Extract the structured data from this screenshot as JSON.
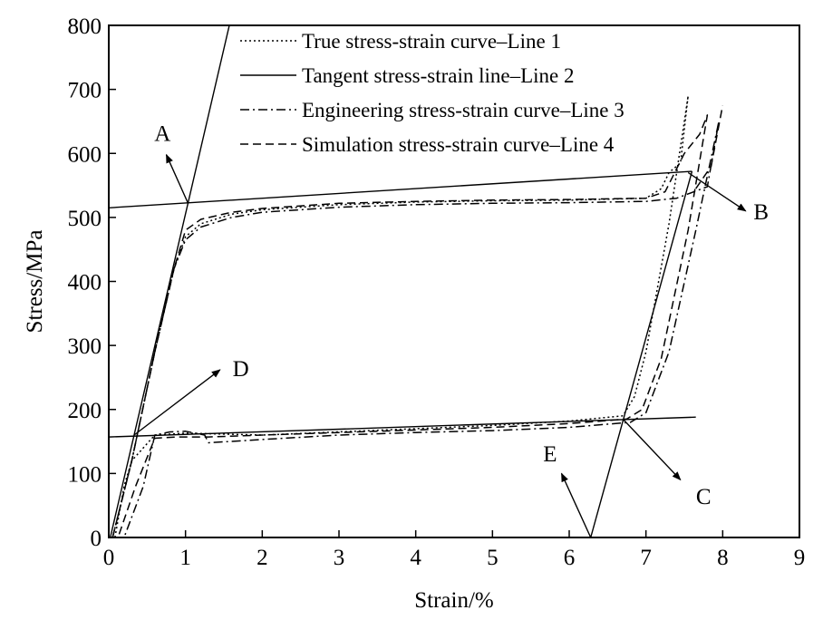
{
  "chart_data": {
    "type": "line",
    "xlabel": "Strain/%",
    "ylabel": "Stress/MPa",
    "xlim": [
      0,
      9
    ],
    "ylim": [
      0,
      800
    ],
    "xticks": [
      "0",
      "1",
      "2",
      "3",
      "4",
      "5",
      "6",
      "7",
      "8",
      "9"
    ],
    "yticks": [
      "0",
      "100",
      "200",
      "300",
      "400",
      "500",
      "600",
      "700",
      "800"
    ],
    "grid": false,
    "legend_position": "top-right",
    "series": [
      {
        "name": "True stress-strain curve–Line 1",
        "style": "dotted",
        "points": [
          [
            0.05,
            0
          ],
          [
            0.3,
            120
          ],
          [
            0.6,
            290
          ],
          [
            0.85,
            420
          ],
          [
            1.0,
            470
          ],
          [
            1.2,
            490
          ],
          [
            1.6,
            505
          ],
          [
            2.0,
            512
          ],
          [
            3.0,
            520
          ],
          [
            4.0,
            524
          ],
          [
            5.0,
            526
          ],
          [
            6.0,
            527
          ],
          [
            7.0,
            530
          ],
          [
            7.2,
            545
          ],
          [
            7.3,
            570
          ],
          [
            7.45,
            585
          ],
          [
            7.55,
            690
          ],
          [
            7.3,
            490
          ],
          [
            7.0,
            290
          ],
          [
            6.85,
            220
          ],
          [
            6.7,
            190
          ],
          [
            6.0,
            182
          ],
          [
            5.0,
            175
          ],
          [
            4.0,
            170
          ],
          [
            3.0,
            165
          ],
          [
            2.0,
            160
          ],
          [
            1.0,
            163
          ],
          [
            0.6,
            160
          ],
          [
            0.3,
            120
          ],
          [
            0.2,
            80
          ],
          [
            0.08,
            0
          ]
        ]
      },
      {
        "name": "Engineering stress-strain curve–Line 3",
        "style": "dashdot",
        "points": [
          [
            0.05,
            0
          ],
          [
            0.3,
            120
          ],
          [
            0.6,
            290
          ],
          [
            0.85,
            420
          ],
          [
            1.0,
            465
          ],
          [
            1.2,
            485
          ],
          [
            1.6,
            500
          ],
          [
            2.0,
            508
          ],
          [
            3.0,
            516
          ],
          [
            4.0,
            520
          ],
          [
            5.0,
            522
          ],
          [
            6.0,
            523
          ],
          [
            7.0,
            525
          ],
          [
            7.4,
            530
          ],
          [
            7.8,
            548
          ],
          [
            7.95,
            650
          ],
          [
            7.65,
            480
          ],
          [
            7.3,
            290
          ],
          [
            7.0,
            195
          ],
          [
            6.8,
            180
          ],
          [
            6.0,
            172
          ],
          [
            5.0,
            167
          ],
          [
            4.0,
            164
          ],
          [
            3.0,
            160
          ],
          [
            2.0,
            153
          ],
          [
            1.3,
            148
          ],
          [
            1.25,
            160
          ],
          [
            1.0,
            166
          ],
          [
            0.8,
            165
          ],
          [
            0.6,
            160
          ],
          [
            0.45,
            80
          ],
          [
            0.2,
            0
          ]
        ]
      },
      {
        "name": "Simulation stress-strain curve–Line 4",
        "style": "dashed",
        "points": [
          [
            0.05,
            0
          ],
          [
            0.3,
            120
          ],
          [
            0.6,
            290
          ],
          [
            0.85,
            420
          ],
          [
            1.0,
            480
          ],
          [
            1.2,
            497
          ],
          [
            1.6,
            508
          ],
          [
            2.0,
            514
          ],
          [
            3.0,
            522
          ],
          [
            4.0,
            525
          ],
          [
            5.0,
            527
          ],
          [
            6.0,
            528
          ],
          [
            7.0,
            530
          ],
          [
            7.25,
            540
          ],
          [
            7.5,
            600
          ],
          [
            7.7,
            630
          ],
          [
            7.8,
            660
          ],
          [
            7.55,
            480
          ],
          [
            7.2,
            280
          ],
          [
            6.95,
            200
          ],
          [
            6.75,
            185
          ],
          [
            6.0,
            178
          ],
          [
            5.0,
            172
          ],
          [
            4.0,
            168
          ],
          [
            3.0,
            164
          ],
          [
            2.0,
            160
          ],
          [
            1.3,
            157
          ],
          [
            0.9,
            157
          ],
          [
            0.6,
            155
          ],
          [
            0.35,
            80
          ],
          [
            0.12,
            0
          ]
        ]
      },
      {
        "name": "",
        "style": "dashed",
        "points": [
          [
            7.65,
            545
          ],
          [
            7.85,
            580
          ],
          [
            8.0,
            675
          ]
        ]
      }
    ],
    "tangent_lines": [
      {
        "name": "Tangent stress-strain line–Line 2",
        "points": [
          [
            0.02,
            0
          ],
          [
            1.6,
            815
          ]
        ]
      },
      {
        "name": "",
        "points": [
          [
            0,
            515
          ],
          [
            7.6,
            572
          ]
        ]
      },
      {
        "name": "",
        "points": [
          [
            0,
            157
          ],
          [
            7.65,
            188
          ]
        ]
      },
      {
        "name": "",
        "points": [
          [
            6.28,
            0
          ],
          [
            7.6,
            572
          ]
        ]
      }
    ],
    "point_labels": [
      {
        "label": "A",
        "x": 1.03,
        "y": 523,
        "text_pos": [
          0.7,
          632
        ],
        "arrow_to": [
          0.75,
          598
        ]
      },
      {
        "label": "B",
        "x": 7.55,
        "y": 570,
        "text_pos": [
          8.5,
          510
        ],
        "arrow_to": [
          8.3,
          510
        ]
      },
      {
        "label": "C",
        "x": 6.7,
        "y": 185,
        "text_pos": [
          7.75,
          65
        ],
        "arrow_to": [
          7.45,
          90
        ]
      },
      {
        "label": "D",
        "x": 0.33,
        "y": 160,
        "text_pos": [
          1.72,
          265
        ],
        "arrow_to": [
          1.45,
          262
        ]
      },
      {
        "label": "E",
        "x": 6.28,
        "y": 0,
        "text_pos": [
          5.75,
          132
        ],
        "arrow_to": [
          5.9,
          100
        ]
      }
    ]
  }
}
